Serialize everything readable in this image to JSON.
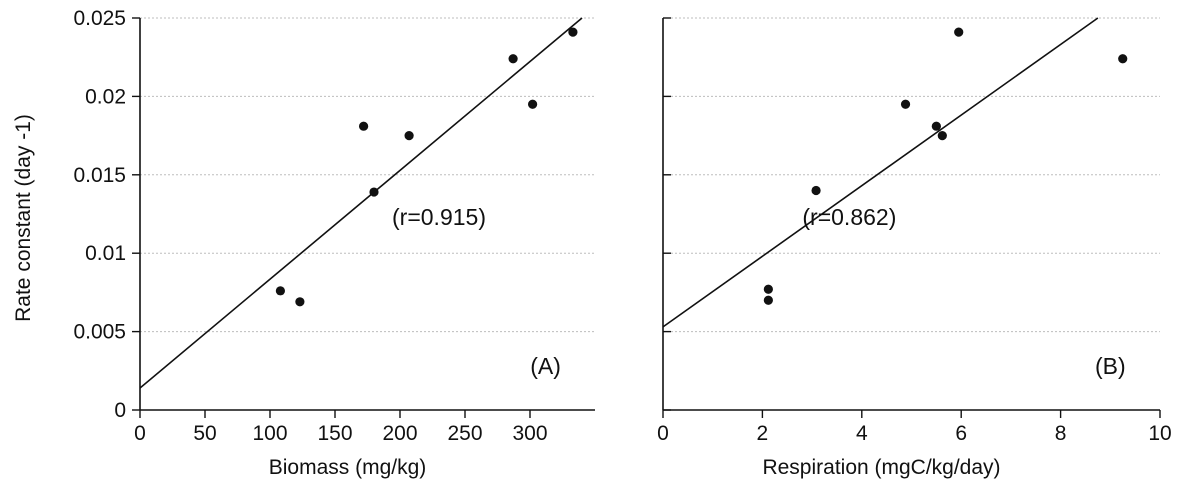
{
  "ylabel": "Rate constant (day -1)",
  "y_ticks": [
    "0",
    "0.005",
    "0.01",
    "0.015",
    "0.02",
    "0.025"
  ],
  "chart_data": [
    {
      "type": "scatter",
      "xlabel": "Biomass (mg/kg)",
      "ylabel": "Rate constant (day -1)",
      "xlim": [
        0,
        350
      ],
      "ylim": [
        0,
        0.025
      ],
      "x_ticks": [
        "0",
        "50",
        "100",
        "150",
        "200",
        "250",
        "300"
      ],
      "x_tick_values": [
        0,
        50,
        100,
        150,
        200,
        250,
        300
      ],
      "y_tick_values": [
        0,
        0.005,
        0.01,
        0.015,
        0.02,
        0.025
      ],
      "grid": "horizontal",
      "points": [
        {
          "x": 108,
          "y": 0.0076
        },
        {
          "x": 123,
          "y": 0.0069
        },
        {
          "x": 172,
          "y": 0.0181
        },
        {
          "x": 180,
          "y": 0.0139
        },
        {
          "x": 207,
          "y": 0.0175
        },
        {
          "x": 287,
          "y": 0.0224
        },
        {
          "x": 302,
          "y": 0.0195
        },
        {
          "x": 333,
          "y": 0.0241
        }
      ],
      "fit_line": {
        "x": [
          0,
          340
        ],
        "y": [
          0.0014,
          0.025
        ]
      },
      "annotation": "(r=0.915)",
      "annotation_pos": {
        "x": 230,
        "y": 0.0118
      },
      "panel_label": "(A)",
      "panel_label_pos": {
        "x": 312,
        "y": 0.0023
      }
    },
    {
      "type": "scatter",
      "xlabel": "Respiration (mgC/kg/day)",
      "ylabel": "",
      "xlim": [
        0,
        10
      ],
      "ylim": [
        0,
        0.025
      ],
      "x_ticks": [
        "0",
        "2",
        "4",
        "6",
        "8",
        "10"
      ],
      "x_tick_values": [
        0,
        2,
        4,
        6,
        8,
        10
      ],
      "y_tick_values": [
        0,
        0.005,
        0.01,
        0.015,
        0.02,
        0.025
      ],
      "grid": "horizontal",
      "points": [
        {
          "x": 2.12,
          "y": 0.0077
        },
        {
          "x": 2.12,
          "y": 0.007
        },
        {
          "x": 3.08,
          "y": 0.014
        },
        {
          "x": 4.88,
          "y": 0.0195
        },
        {
          "x": 5.5,
          "y": 0.0181
        },
        {
          "x": 5.62,
          "y": 0.0175
        },
        {
          "x": 5.95,
          "y": 0.0241
        },
        {
          "x": 9.25,
          "y": 0.0224
        }
      ],
      "fit_line": {
        "x": [
          0,
          8.75
        ],
        "y": [
          0.0053,
          0.025
        ]
      },
      "annotation": "(r=0.862)",
      "annotation_pos": {
        "x": 3.75,
        "y": 0.0118
      },
      "panel_label": "(B)",
      "panel_label_pos": {
        "x": 9.0,
        "y": 0.0023
      }
    }
  ]
}
